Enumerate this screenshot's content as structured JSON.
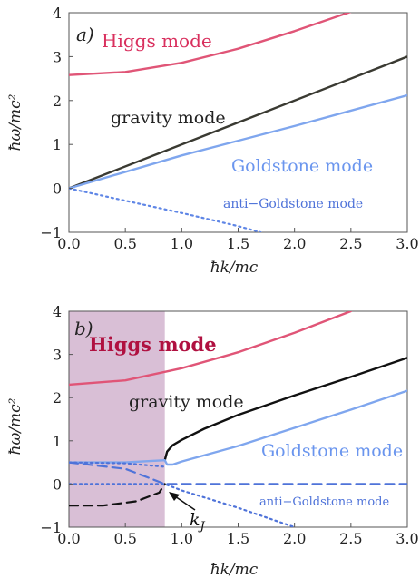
{
  "chart_data": [
    {
      "type": "line",
      "panel_label": "a)",
      "xlabel": "ħk/mc",
      "ylabel": "ħω/mc²",
      "xlim": [
        0,
        3
      ],
      "ylim": [
        -1,
        4
      ],
      "x_ticks": [
        "0.0",
        "0.5",
        "1.0",
        "1.5",
        "2.0",
        "2.5",
        "3.0"
      ],
      "y_ticks": [
        "−1",
        "0",
        "1",
        "2",
        "3",
        "4"
      ],
      "series": [
        {
          "name": "Higgs mode",
          "color": "#e05577",
          "style": "solid",
          "x": [
            0,
            0.5,
            1.0,
            1.5,
            2.0,
            2.5
          ],
          "y": [
            2.58,
            2.65,
            2.86,
            3.18,
            3.58,
            4.02
          ]
        },
        {
          "name": "gravity mode",
          "color": "#3a3a32",
          "style": "solid",
          "x": [
            0,
            3.0
          ],
          "y": [
            0,
            3.0
          ]
        },
        {
          "name": "Goldstone mode",
          "color": "#7fa6ee",
          "style": "solid",
          "x": [
            0,
            1.0,
            2.0,
            3.0
          ],
          "y": [
            0,
            0.75,
            1.42,
            2.12
          ]
        },
        {
          "name": "anti−Goldstone mode",
          "color": "#5f86e6",
          "style": "dotted",
          "x": [
            0,
            0.5,
            1.0,
            1.5,
            1.7
          ],
          "y": [
            0,
            -0.28,
            -0.56,
            -0.86,
            -1.0
          ]
        }
      ]
    },
    {
      "type": "line",
      "panel_label": "b)",
      "xlabel": "ħk/mc",
      "ylabel": "ħω/mc²",
      "xlim": [
        0,
        3
      ],
      "ylim": [
        -1,
        4
      ],
      "x_ticks": [
        "0.0",
        "0.5",
        "1.0",
        "1.5",
        "2.0",
        "2.5",
        "3.0"
      ],
      "y_ticks": [
        "−1",
        "0",
        "1",
        "2",
        "3",
        "4"
      ],
      "shaded_region": {
        "x": [
          0,
          0.85
        ],
        "color": "#d9bfd6"
      },
      "annotation": {
        "text": "k",
        "subscript": "J",
        "at": [
          0.85,
          0
        ]
      },
      "series": [
        {
          "name": "Higgs mode",
          "color": "#e05577",
          "style": "solid",
          "x": [
            0,
            0.5,
            1.0,
            1.5,
            2.0,
            2.5
          ],
          "y": [
            2.3,
            2.4,
            2.68,
            3.05,
            3.5,
            4.0
          ]
        },
        {
          "name": "gravity mode",
          "color": "#111111",
          "style": "solid",
          "x": [
            0.85,
            0.87,
            0.92,
            1.0,
            1.2,
            1.5,
            2.0,
            2.5,
            3.0
          ],
          "y": [
            0.55,
            0.75,
            0.9,
            1.02,
            1.28,
            1.6,
            2.05,
            2.48,
            2.92
          ]
        },
        {
          "name": "gravity mode (complex branch)",
          "color": "#111111",
          "style": "dashed",
          "x": [
            0.0,
            0.3,
            0.6,
            0.8,
            0.85
          ],
          "y": [
            -0.5,
            -0.5,
            -0.4,
            -0.2,
            0.0
          ]
        },
        {
          "name": "Goldstone mode",
          "color": "#7fa6ee",
          "style": "solid",
          "x": [
            0.0,
            0.5,
            0.85,
            0.87,
            0.92,
            1.0,
            1.5,
            2.0,
            2.5,
            3.0
          ],
          "y": [
            0.5,
            0.5,
            0.55,
            0.45,
            0.45,
            0.52,
            0.88,
            1.3,
            1.72,
            2.16
          ]
        },
        {
          "name": "anti−Goldstone mode",
          "color": "#4f73d9",
          "style": "dashed",
          "x": [
            0.0,
            0.5,
            0.85,
            1.0,
            2.0,
            3.0
          ],
          "y": [
            0.5,
            0.35,
            0.0,
            0.0,
            0.0,
            0.0
          ]
        },
        {
          "name": "anti−Goldstone mode (dotted)",
          "color": "#4f73d9",
          "style": "dotted",
          "x": [
            0.0,
            0.5,
            0.85,
            1.0,
            1.5,
            2.0
          ],
          "y": [
            0.0,
            0.0,
            0.0,
            -0.15,
            -0.55,
            -1.0
          ]
        },
        {
          "name": "anti−Goldstone mode (upper dotted)",
          "color": "#4f73d9",
          "style": "dotted",
          "x": [
            0.0,
            0.5,
            0.85
          ],
          "y": [
            0.5,
            0.48,
            0.4
          ]
        }
      ]
    }
  ],
  "labels": {
    "a": {
      "higgs": "Higgs mode",
      "gravity": "gravity mode",
      "goldstone": "Goldstone mode",
      "anti": "anti−Goldstone mode"
    },
    "b": {
      "higgs": "Higgs mode",
      "gravity": "gravity mode",
      "goldstone": "Goldstone mode",
      "anti": "anti−Goldstone mode",
      "kj": "k",
      "kj_sub": "J"
    }
  }
}
